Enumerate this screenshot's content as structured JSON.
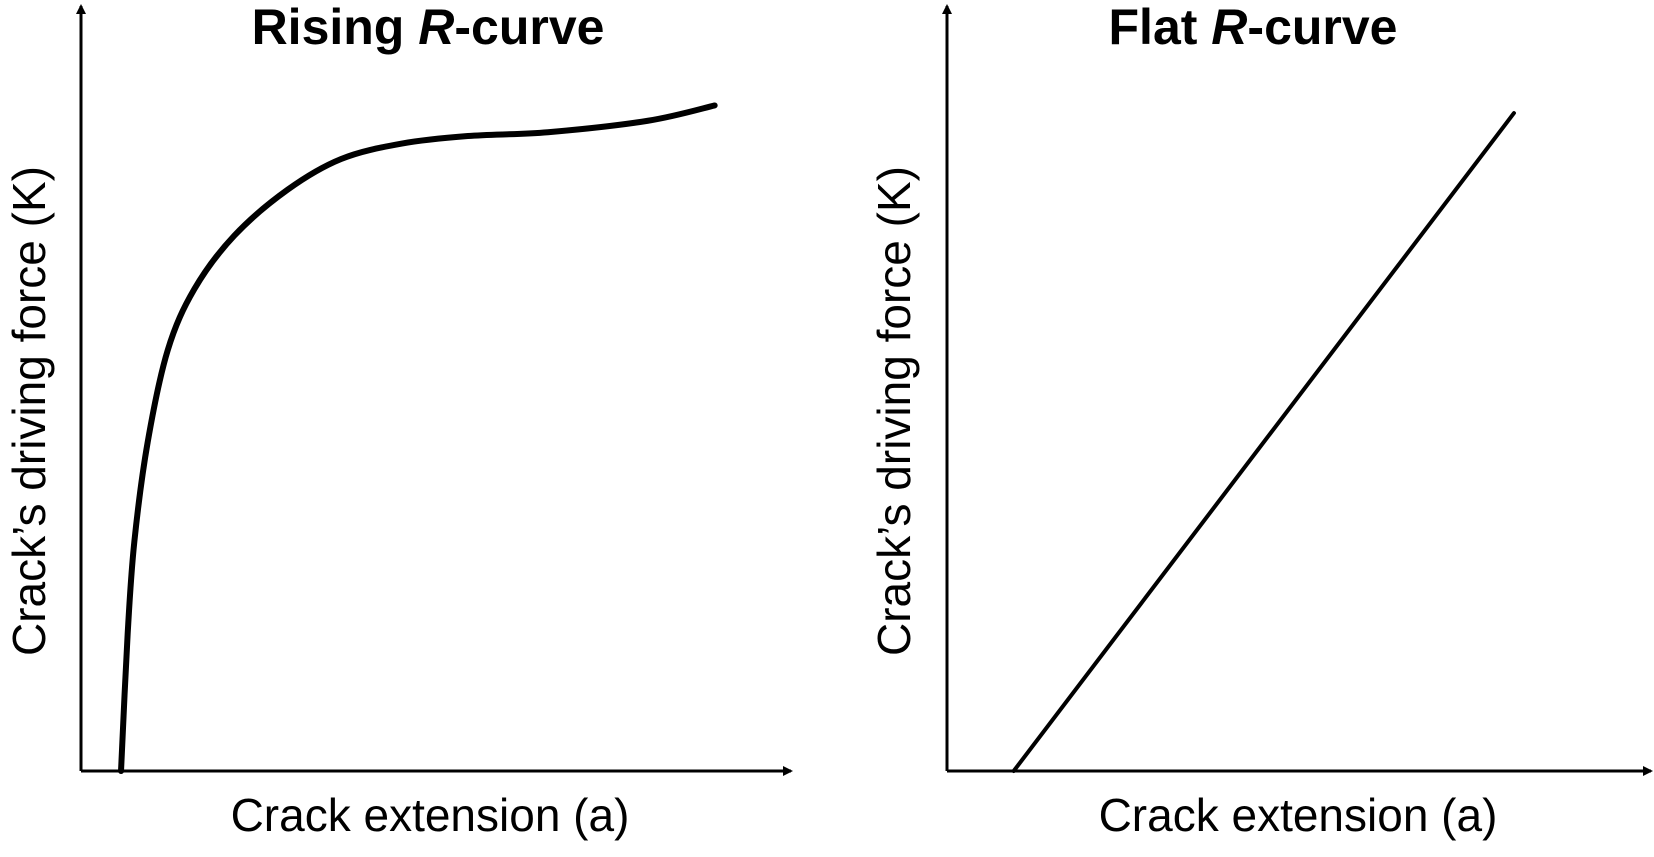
{
  "chart_data": [
    {
      "type": "line",
      "title_main": "Rising ",
      "title_italic": "R",
      "title_rest": "-curve",
      "xlabel": "Crack extension (a)",
      "ylabel": "Crack’s driving force (K)",
      "curve": [
        [
          0.06,
          0.0
        ],
        [
          0.07,
          0.18
        ],
        [
          0.08,
          0.3
        ],
        [
          0.1,
          0.43
        ],
        [
          0.13,
          0.55
        ],
        [
          0.17,
          0.63
        ],
        [
          0.23,
          0.7
        ],
        [
          0.31,
          0.76
        ],
        [
          0.39,
          0.8
        ],
        [
          0.48,
          0.82
        ],
        [
          0.58,
          0.83
        ],
        [
          0.7,
          0.835
        ],
        [
          0.85,
          0.85
        ],
        [
          0.95,
          0.87
        ]
      ]
    },
    {
      "type": "line",
      "title_main": "Flat ",
      "title_italic": "R",
      "title_rest": "-curve",
      "xlabel": "Crack extension (a)",
      "ylabel": "Crack’s driving force (K)",
      "curve": [
        [
          0.1,
          0.0
        ],
        [
          0.85,
          0.86
        ]
      ]
    }
  ]
}
